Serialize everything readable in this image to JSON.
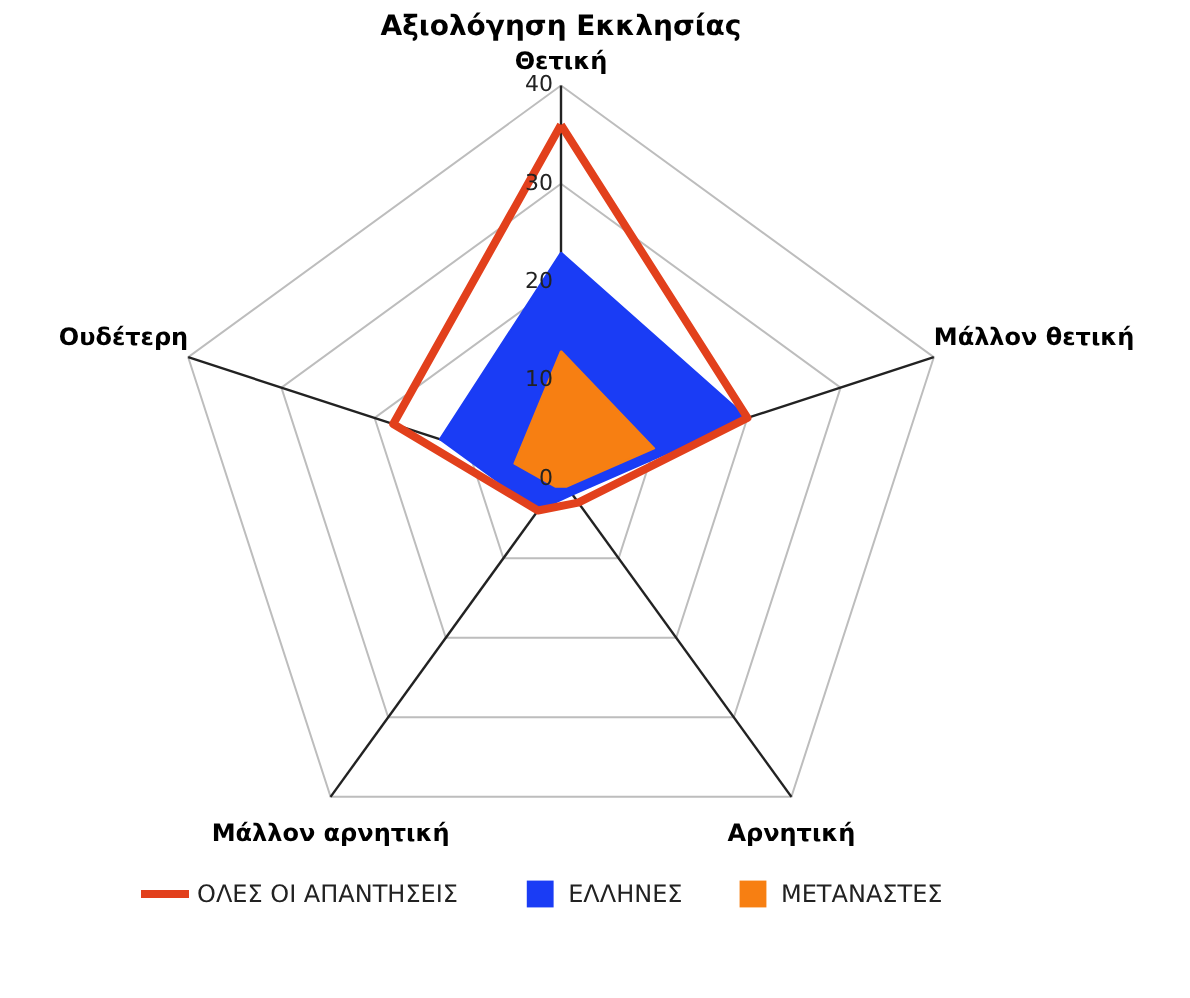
{
  "chart_data": {
    "type": "radar",
    "title": "Αξιολόγηση Εκκλησίας",
    "categories": [
      "Θετική",
      "Μάλλον θετική",
      "Αρνητική",
      "Μάλλον αρνητική",
      "Ουδέτερη"
    ],
    "series": [
      {
        "name": "ΟΛΕΣ ΟΙ ΑΠΑΝΤΗΣΕΙΣ",
        "color": "#e2401c",
        "values": [
          36,
          20,
          3,
          4,
          18
        ]
      },
      {
        "name": "ΕΛΛΗΝΕΣ",
        "type": "area",
        "color": "#1a3cf5",
        "values": [
          23,
          20,
          2,
          4,
          13
        ]
      },
      {
        "name": "ΜΕΤΑΝΑΣΤΕΣ",
        "type": "area",
        "color": "#f77f12",
        "values": [
          13,
          10,
          1,
          1,
          5
        ]
      }
    ],
    "ylim": [
      0,
      40
    ],
    "yticks": [
      0,
      10,
      20,
      30,
      40
    ],
    "grid": true,
    "legend": "bottom"
  }
}
